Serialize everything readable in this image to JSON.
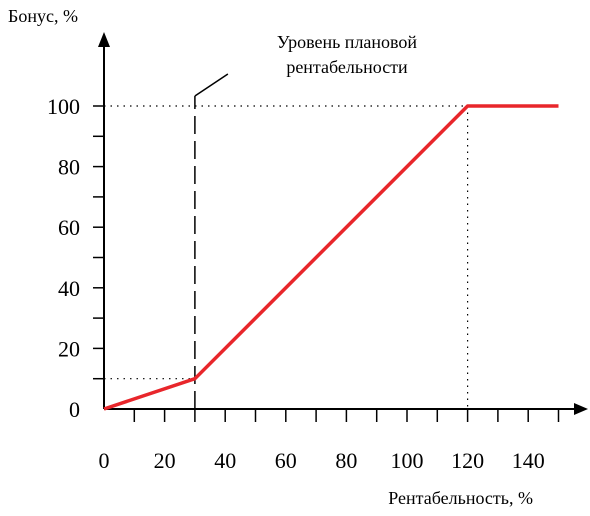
{
  "chart_data": {
    "type": "line",
    "xlabel": "Рентабельность, %",
    "ylabel": "Бонус,  %",
    "xlim": [
      0,
      150
    ],
    "ylim": [
      0,
      100
    ],
    "x_ticks": [
      0,
      20,
      40,
      60,
      80,
      100,
      120,
      140
    ],
    "y_ticks": [
      0,
      20,
      40,
      60,
      80,
      100
    ],
    "grid": false,
    "series": [
      {
        "color": "#e8262b",
        "x": [
          0,
          30,
          120,
          150
        ],
        "y": [
          0,
          10,
          100,
          100
        ]
      }
    ],
    "reference_lines": {
      "planned_profitability_x": 30,
      "max_profitability_x": 120,
      "y_at_planned": 10,
      "y_max": 100
    },
    "annotation": {
      "line1": "Уровень плановой",
      "line2": "рентабельности"
    }
  }
}
